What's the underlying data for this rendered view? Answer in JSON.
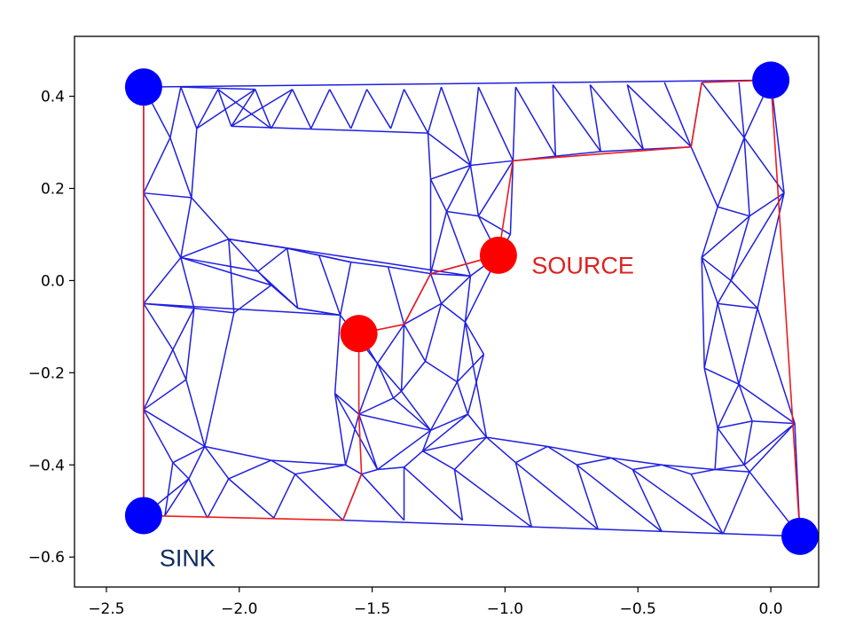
{
  "chart_data": {
    "type": "network",
    "xlim": [
      -2.62,
      0.18
    ],
    "ylim": [
      -0.665,
      0.53
    ],
    "xticks": [
      -2.5,
      -2.0,
      -1.5,
      -1.0,
      -0.5,
      0.0
    ],
    "xtick_labels": [
      "−2.5",
      "−2.0",
      "−1.5",
      "−1.0",
      "−0.5",
      "0.0"
    ],
    "yticks": [
      0.4,
      0.2,
      0.0,
      -0.2,
      -0.4,
      -0.6
    ],
    "ytick_labels": [
      "0.4",
      "0.2",
      "0.0",
      "−0.2",
      "−0.4",
      "−0.6"
    ],
    "grid": false,
    "colors": {
      "mesh": "#1f1fe0",
      "path": "#ee1c1c",
      "source": "#ff0000",
      "sink": "#0000ff",
      "source_label": "#e02020",
      "sink_label": "#0a2a5e"
    },
    "annotations": [
      {
        "text": "SOURCE",
        "x": -0.9,
        "y": 0.015,
        "color_key": "source_label"
      },
      {
        "text": "SINK",
        "x": -2.3,
        "y": -0.62,
        "color_key": "sink_label"
      }
    ],
    "source_nodes": [
      [
        -1.025,
        0.055
      ],
      [
        -1.55,
        -0.115
      ]
    ],
    "sink_nodes": [
      [
        -2.36,
        0.42
      ],
      [
        0.0,
        0.435
      ],
      [
        -2.36,
        -0.51
      ],
      [
        0.11,
        -0.555
      ]
    ],
    "nodes": {
      "A1": [
        -2.36,
        0.42
      ],
      "A2": [
        -2.22,
        0.42
      ],
      "A3": [
        -2.08,
        0.415
      ],
      "A4": [
        -1.94,
        0.415
      ],
      "A5": [
        -1.8,
        0.415
      ],
      "A6": [
        -1.66,
        0.415
      ],
      "A7": [
        -1.52,
        0.415
      ],
      "A8": [
        -1.38,
        0.415
      ],
      "A9": [
        -1.24,
        0.42
      ],
      "A10": [
        -1.1,
        0.42
      ],
      "A11": [
        -0.96,
        0.42
      ],
      "A12": [
        -0.82,
        0.425
      ],
      "A13": [
        -0.68,
        0.425
      ],
      "A14": [
        -0.54,
        0.425
      ],
      "A15": [
        -0.4,
        0.43
      ],
      "A16": [
        -0.26,
        0.43
      ],
      "A17": [
        -0.12,
        0.43
      ],
      "A18": [
        0.0,
        0.435
      ],
      "B1": [
        -2.26,
        0.31
      ],
      "B2": [
        -2.16,
        0.33
      ],
      "B3": [
        -2.03,
        0.335
      ],
      "B4": [
        -1.88,
        0.33
      ],
      "B5": [
        -1.73,
        0.33
      ],
      "B6": [
        -1.58,
        0.33
      ],
      "B7": [
        -1.43,
        0.33
      ],
      "B8": [
        -1.29,
        0.32
      ],
      "B9": [
        -1.13,
        0.25
      ],
      "B10": [
        -0.97,
        0.26
      ],
      "B11": [
        -0.81,
        0.27
      ],
      "B12": [
        -0.64,
        0.28
      ],
      "B13": [
        -0.48,
        0.285
      ],
      "B14": [
        -0.3,
        0.29
      ],
      "B15": [
        -0.1,
        0.31
      ],
      "C1": [
        -2.36,
        0.19
      ],
      "C2": [
        -2.18,
        0.18
      ],
      "C3": [
        -1.28,
        0.22
      ],
      "C4": [
        -1.22,
        0.15
      ],
      "C5": [
        -1.1,
        0.14
      ],
      "C6": [
        -0.98,
        0.1
      ],
      "C7": [
        -0.2,
        0.16
      ],
      "C8": [
        -0.08,
        0.14
      ],
      "C9": [
        0.05,
        0.19
      ],
      "D1": [
        -2.22,
        0.05
      ],
      "D2": [
        -2.04,
        0.09
      ],
      "D3": [
        -1.93,
        0.02
      ],
      "D4": [
        -1.82,
        0.07
      ],
      "D5": [
        -1.7,
        0.055
      ],
      "D6": [
        -1.58,
        0.04
      ],
      "D7": [
        -1.44,
        0.03
      ],
      "D8": [
        -1.28,
        0.015
      ],
      "D9": [
        -1.13,
        0.01
      ],
      "D10": [
        -1.025,
        0.055
      ],
      "D11": [
        -0.26,
        0.05
      ],
      "D12": [
        -0.15,
        0.0
      ],
      "E1": [
        -2.36,
        -0.05
      ],
      "E2": [
        -2.17,
        -0.06
      ],
      "E3": [
        -2.02,
        -0.07
      ],
      "E4": [
        -1.88,
        -0.01
      ],
      "E5": [
        -1.78,
        -0.06
      ],
      "E6": [
        -1.62,
        -0.075
      ],
      "E7": [
        -1.38,
        -0.095
      ],
      "E8": [
        -1.24,
        -0.05
      ],
      "E9": [
        -1.15,
        -0.09
      ],
      "E10": [
        -0.2,
        -0.05
      ],
      "E11": [
        -0.05,
        -0.06
      ],
      "F1": [
        -2.25,
        -0.15
      ],
      "F2": [
        -1.55,
        -0.115
      ],
      "F3": [
        -1.48,
        -0.18
      ],
      "F4": [
        -1.39,
        -0.24
      ],
      "F5": [
        -1.3,
        -0.175
      ],
      "F6": [
        -1.18,
        -0.22
      ],
      "F7": [
        -1.08,
        -0.16
      ],
      "F8": [
        -0.25,
        -0.19
      ],
      "F9": [
        -0.12,
        -0.225
      ],
      "G1": [
        -2.36,
        -0.28
      ],
      "G2": [
        -2.2,
        -0.215
      ],
      "G3": [
        -1.64,
        -0.245
      ],
      "G4": [
        -1.55,
        -0.29
      ],
      "G5": [
        -1.42,
        -0.255
      ],
      "G6": [
        -1.28,
        -0.325
      ],
      "G7": [
        -1.14,
        -0.29
      ],
      "G8": [
        -0.2,
        -0.32
      ],
      "G9": [
        -0.07,
        -0.305
      ],
      "G10": [
        0.09,
        -0.31
      ],
      "H1": [
        -2.25,
        -0.395
      ],
      "H2": [
        -2.13,
        -0.36
      ],
      "H3": [
        -1.88,
        -0.39
      ],
      "H4": [
        -1.6,
        -0.4
      ],
      "H5": [
        -1.48,
        -0.41
      ],
      "H6": [
        -1.31,
        -0.37
      ],
      "H7": [
        -1.07,
        -0.34
      ],
      "H8": [
        -0.84,
        -0.36
      ],
      "H9": [
        -0.6,
        -0.385
      ],
      "H10": [
        -0.41,
        -0.4
      ],
      "H11": [
        -0.21,
        -0.41
      ],
      "H12": [
        -0.1,
        -0.4
      ],
      "I1": [
        -2.19,
        -0.43
      ],
      "I2": [
        -2.04,
        -0.43
      ],
      "I3": [
        -1.79,
        -0.42
      ],
      "I4": [
        -1.54,
        -0.42
      ],
      "I5": [
        -1.38,
        -0.405
      ],
      "I6": [
        -1.19,
        -0.41
      ],
      "I7": [
        -0.96,
        -0.395
      ],
      "I8": [
        -0.73,
        -0.4
      ],
      "I9": [
        -0.52,
        -0.41
      ],
      "I10": [
        -0.3,
        -0.42
      ],
      "I11": [
        -0.08,
        -0.415
      ],
      "J1": [
        -2.36,
        -0.51
      ],
      "J2": [
        -2.28,
        -0.51
      ],
      "J3": [
        -2.12,
        -0.515
      ],
      "J4": [
        -1.87,
        -0.515
      ],
      "J5": [
        -1.61,
        -0.52
      ],
      "J6": [
        -1.38,
        -0.52
      ],
      "J7": [
        -1.16,
        -0.52
      ],
      "J8": [
        -0.9,
        -0.535
      ],
      "J9": [
        -0.65,
        -0.54
      ],
      "J10": [
        -0.41,
        -0.545
      ],
      "J11": [
        -0.18,
        -0.55
      ],
      "J12": [
        0.11,
        -0.555
      ]
    },
    "mesh_edges": [
      [
        "A1",
        "A18"
      ],
      [
        "A1",
        "B1"
      ],
      [
        "A2",
        "B1"
      ],
      [
        "A2",
        "B2"
      ],
      [
        "A3",
        "B2"
      ],
      [
        "A3",
        "B3"
      ],
      [
        "A4",
        "B3"
      ],
      [
        "A4",
        "B4"
      ],
      [
        "A5",
        "B4"
      ],
      [
        "A5",
        "B5"
      ],
      [
        "A6",
        "B5"
      ],
      [
        "A6",
        "B6"
      ],
      [
        "A7",
        "B6"
      ],
      [
        "A7",
        "B7"
      ],
      [
        "A8",
        "B7"
      ],
      [
        "A8",
        "B8"
      ],
      [
        "A9",
        "B8"
      ],
      [
        "A9",
        "B9"
      ],
      [
        "A10",
        "B9"
      ],
      [
        "A10",
        "B10"
      ],
      [
        "A11",
        "B10"
      ],
      [
        "A11",
        "B11"
      ],
      [
        "A12",
        "B11"
      ],
      [
        "A12",
        "B12"
      ],
      [
        "A13",
        "B12"
      ],
      [
        "A13",
        "B13"
      ],
      [
        "A14",
        "B13"
      ],
      [
        "A14",
        "B14"
      ],
      [
        "A15",
        "B14"
      ],
      [
        "A16",
        "B14"
      ],
      [
        "A16",
        "B15"
      ],
      [
        "A17",
        "B15"
      ],
      [
        "A18",
        "B15"
      ],
      [
        "A2",
        "A4"
      ],
      [
        "B2",
        "A4"
      ],
      [
        "B3",
        "A5"
      ],
      [
        "A3",
        "B4"
      ],
      [
        "B3",
        "B8"
      ],
      [
        "B8",
        "B9"
      ],
      [
        "B9",
        "B10"
      ],
      [
        "B10",
        "B11"
      ],
      [
        "B11",
        "B12"
      ],
      [
        "B12",
        "B13"
      ],
      [
        "B13",
        "B14"
      ],
      [
        "A1",
        "C1"
      ],
      [
        "B1",
        "C1"
      ],
      [
        "B1",
        "C2"
      ],
      [
        "B2",
        "C2"
      ],
      [
        "C1",
        "C2"
      ],
      [
        "B8",
        "C3"
      ],
      [
        "B9",
        "C3"
      ],
      [
        "C3",
        "C4"
      ],
      [
        "B9",
        "C4"
      ],
      [
        "B9",
        "C5"
      ],
      [
        "C4",
        "C5"
      ],
      [
        "C5",
        "B10"
      ],
      [
        "C5",
        "C6"
      ],
      [
        "B10",
        "C6"
      ],
      [
        "B14",
        "C7"
      ],
      [
        "B15",
        "C7"
      ],
      [
        "B15",
        "C8"
      ],
      [
        "C7",
        "C8"
      ],
      [
        "B15",
        "C9"
      ],
      [
        "A18",
        "C9"
      ],
      [
        "C8",
        "C9"
      ],
      [
        "C1",
        "D1"
      ],
      [
        "C2",
        "D1"
      ],
      [
        "C2",
        "D2"
      ],
      [
        "D1",
        "D2"
      ],
      [
        "D2",
        "D3"
      ],
      [
        "D2",
        "D4"
      ],
      [
        "D2",
        "D9"
      ],
      [
        "D3",
        "D4"
      ],
      [
        "D4",
        "D5"
      ],
      [
        "D5",
        "D6"
      ],
      [
        "D1",
        "D3"
      ],
      [
        "C3",
        "D8"
      ],
      [
        "C4",
        "D8"
      ],
      [
        "C4",
        "D9"
      ],
      [
        "D8",
        "D9"
      ],
      [
        "C5",
        "D10"
      ],
      [
        "D9",
        "D10"
      ],
      [
        "C6",
        "D10"
      ],
      [
        "C7",
        "D11"
      ],
      [
        "C8",
        "D11"
      ],
      [
        "C8",
        "D12"
      ],
      [
        "D11",
        "D12"
      ],
      [
        "C9",
        "D12"
      ],
      [
        "D10",
        "D8"
      ],
      [
        "C1",
        "E1"
      ],
      [
        "D1",
        "E1"
      ],
      [
        "D1",
        "E2"
      ],
      [
        "E1",
        "E2"
      ],
      [
        "E2",
        "E3"
      ],
      [
        "D1",
        "E4"
      ],
      [
        "D3",
        "E4"
      ],
      [
        "D2",
        "E3"
      ],
      [
        "E3",
        "E4"
      ],
      [
        "E4",
        "E5"
      ],
      [
        "D3",
        "E5"
      ],
      [
        "D4",
        "E5"
      ],
      [
        "E5",
        "E6"
      ],
      [
        "D5",
        "E6"
      ],
      [
        "E6",
        "D6"
      ],
      [
        "D6",
        "D7"
      ],
      [
        "D7",
        "E7"
      ],
      [
        "D7",
        "D8"
      ],
      [
        "D8",
        "E8"
      ],
      [
        "D8",
        "E7"
      ],
      [
        "E7",
        "E8"
      ],
      [
        "E8",
        "E9"
      ],
      [
        "D9",
        "E8"
      ],
      [
        "D9",
        "E9"
      ],
      [
        "D10",
        "E9"
      ],
      [
        "D11",
        "E10"
      ],
      [
        "D12",
        "E10"
      ],
      [
        "D12",
        "E11"
      ],
      [
        "E10",
        "E11"
      ],
      [
        "C9",
        "E11"
      ],
      [
        "E1",
        "E6"
      ],
      [
        "D4",
        "D6"
      ],
      [
        "E1",
        "F1"
      ],
      [
        "E2",
        "F1"
      ],
      [
        "E2",
        "G2"
      ],
      [
        "F1",
        "G2"
      ],
      [
        "E6",
        "G3"
      ],
      [
        "E6",
        "F3"
      ],
      [
        "F2",
        "F3"
      ],
      [
        "F3",
        "F4"
      ],
      [
        "E7",
        "F3"
      ],
      [
        "E7",
        "F4"
      ],
      [
        "E7",
        "F5"
      ],
      [
        "F4",
        "F5"
      ],
      [
        "E8",
        "F5"
      ],
      [
        "F5",
        "F6"
      ],
      [
        "E9",
        "F6"
      ],
      [
        "E9",
        "F7"
      ],
      [
        "F6",
        "F7"
      ],
      [
        "E10",
        "F8"
      ],
      [
        "E10",
        "F9"
      ],
      [
        "F8",
        "F9"
      ],
      [
        "E11",
        "F9"
      ],
      [
        "D11",
        "F8"
      ],
      [
        "E11",
        "G10"
      ],
      [
        "E5",
        "E6"
      ],
      [
        "E1",
        "G1"
      ],
      [
        "F1",
        "G1"
      ],
      [
        "G1",
        "G2"
      ],
      [
        "G3",
        "G4"
      ],
      [
        "F3",
        "G4"
      ],
      [
        "F3",
        "G5"
      ],
      [
        "G4",
        "G5"
      ],
      [
        "F4",
        "G5"
      ],
      [
        "G5",
        "G6"
      ],
      [
        "F4",
        "G6"
      ],
      [
        "F6",
        "G6"
      ],
      [
        "F6",
        "G7"
      ],
      [
        "G6",
        "G7"
      ],
      [
        "F7",
        "G7"
      ],
      [
        "E9",
        "H7"
      ],
      [
        "F8",
        "G8"
      ],
      [
        "F9",
        "G8"
      ],
      [
        "F9",
        "G9"
      ],
      [
        "G8",
        "G9"
      ],
      [
        "G9",
        "G10"
      ],
      [
        "F9",
        "G10"
      ],
      [
        "G7",
        "H7"
      ],
      [
        "G1",
        "H1"
      ],
      [
        "G1",
        "J1"
      ],
      [
        "G2",
        "H2"
      ],
      [
        "G1",
        "H2"
      ],
      [
        "H1",
        "H2"
      ],
      [
        "H2",
        "H3"
      ],
      [
        "H3",
        "H4"
      ],
      [
        "G3",
        "H4"
      ],
      [
        "G4",
        "H4"
      ],
      [
        "G4",
        "H5"
      ],
      [
        "G4",
        "G6"
      ],
      [
        "H5",
        "G6"
      ],
      [
        "G6",
        "H6"
      ],
      [
        "H6",
        "G7"
      ],
      [
        "H6",
        "H7"
      ],
      [
        "H7",
        "H8"
      ],
      [
        "H8",
        "H9"
      ],
      [
        "H9",
        "H10"
      ],
      [
        "H10",
        "H11"
      ],
      [
        "H11",
        "H12"
      ],
      [
        "G8",
        "H11"
      ],
      [
        "G8",
        "H12"
      ],
      [
        "G9",
        "H12"
      ],
      [
        "G10",
        "H12"
      ],
      [
        "G10",
        "J12"
      ],
      [
        "E3",
        "H2"
      ],
      [
        "G3",
        "H5"
      ],
      [
        "H1",
        "I1"
      ],
      [
        "H2",
        "I1"
      ],
      [
        "H2",
        "I2"
      ],
      [
        "H3",
        "I2"
      ],
      [
        "H3",
        "I3"
      ],
      [
        "H4",
        "I3"
      ],
      [
        "H4",
        "I4"
      ],
      [
        "H5",
        "I4"
      ],
      [
        "H5",
        "I5"
      ],
      [
        "H6",
        "I5"
      ],
      [
        "H6",
        "I6"
      ],
      [
        "H7",
        "I6"
      ],
      [
        "H7",
        "I7"
      ],
      [
        "H8",
        "I7"
      ],
      [
        "H8",
        "I8"
      ],
      [
        "H9",
        "I8"
      ],
      [
        "H9",
        "I9"
      ],
      [
        "H10",
        "I9"
      ],
      [
        "H10",
        "I10"
      ],
      [
        "H11",
        "I10"
      ],
      [
        "H11",
        "I11"
      ],
      [
        "H12",
        "I11"
      ],
      [
        "G10",
        "I11"
      ],
      [
        "J1",
        "I1"
      ],
      [
        "J2",
        "I1"
      ],
      [
        "J2",
        "H1"
      ],
      [
        "J3",
        "I1"
      ],
      [
        "J3",
        "I2"
      ],
      [
        "J4",
        "I2"
      ],
      [
        "J4",
        "I3"
      ],
      [
        "J5",
        "I3"
      ],
      [
        "J5",
        "I4"
      ],
      [
        "J6",
        "I4"
      ],
      [
        "J6",
        "I5"
      ],
      [
        "J7",
        "I5"
      ],
      [
        "J7",
        "I6"
      ],
      [
        "J8",
        "I6"
      ],
      [
        "J8",
        "I7"
      ],
      [
        "J9",
        "I7"
      ],
      [
        "J9",
        "I8"
      ],
      [
        "J10",
        "I8"
      ],
      [
        "J10",
        "I9"
      ],
      [
        "J11",
        "I9"
      ],
      [
        "J11",
        "I10"
      ],
      [
        "J12",
        "I11"
      ],
      [
        "J11",
        "I11"
      ],
      [
        "J5",
        "J12"
      ]
    ],
    "path_edges": [
      [
        "A1",
        "J1"
      ],
      [
        "J1",
        "J5"
      ],
      [
        "J5",
        "I4"
      ],
      [
        "I4",
        "G4"
      ],
      [
        "G4",
        "F2"
      ],
      [
        "F2",
        "E7"
      ],
      [
        "E7",
        "D8"
      ],
      [
        "D8",
        "D10"
      ],
      [
        "D10",
        "B10"
      ],
      [
        "B10",
        "B14"
      ],
      [
        "B14",
        "A16"
      ],
      [
        "A16",
        "A18"
      ],
      [
        "A18",
        "J12"
      ]
    ]
  }
}
